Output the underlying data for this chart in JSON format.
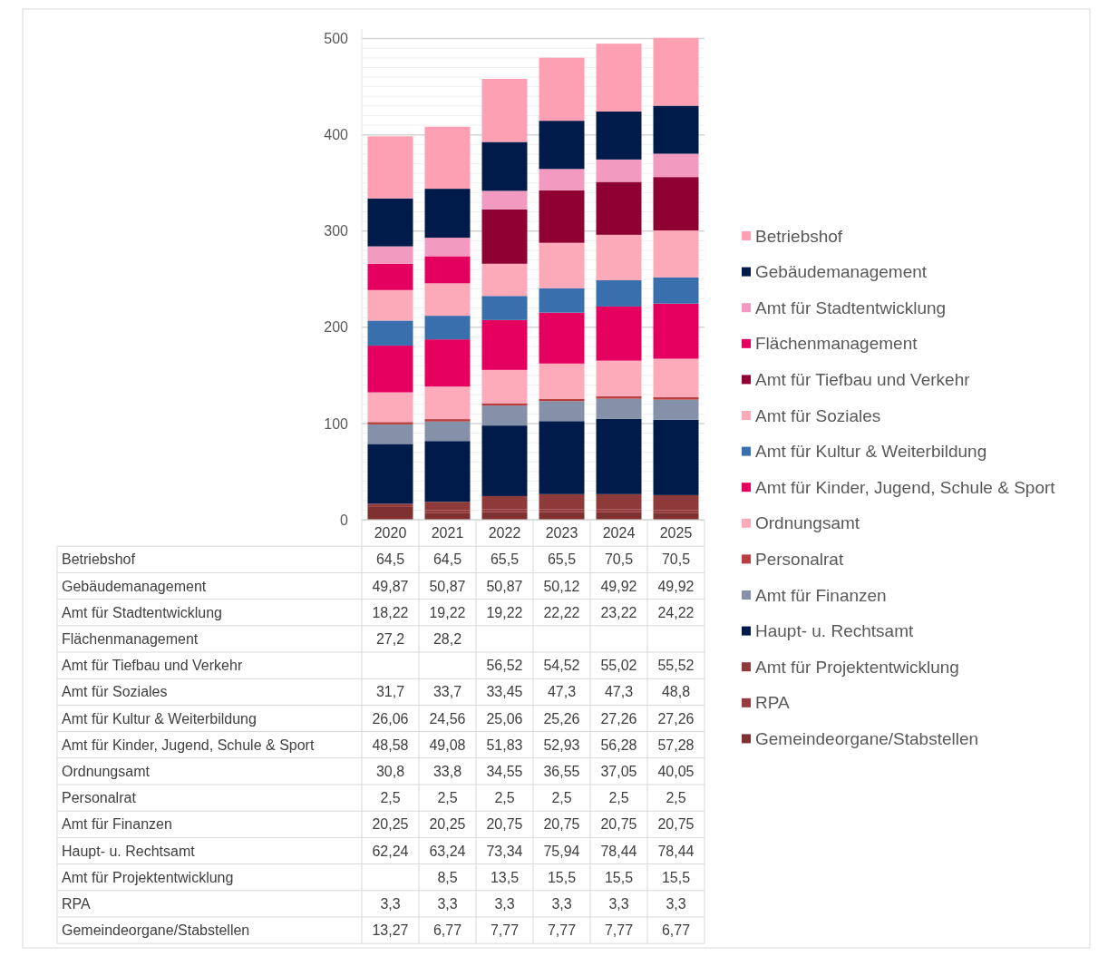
{
  "chart_data": {
    "type": "bar",
    "stacked": true,
    "grid": "y",
    "legend": "right",
    "categories": [
      "2020",
      "2021",
      "2022",
      "2023",
      "2024",
      "2025"
    ],
    "ylim": [
      0,
      510
    ],
    "yticks": [
      0,
      {
        "value": 10,
        "label": null
      },
      {
        "value": 20,
        "label": null
      },
      {
        "value": 30,
        "label": null
      },
      {
        "value": 40,
        "label": null
      },
      {
        "value": 50,
        "label": null
      },
      {
        "value": 60,
        "label": null
      },
      {
        "value": 70,
        "label": null
      },
      {
        "value": 80,
        "label": null
      },
      {
        "value": 90,
        "label": null
      },
      100,
      {
        "value": 110,
        "label": null
      },
      {
        "value": 120,
        "label": null
      },
      {
        "value": 130,
        "label": null
      },
      {
        "value": 140,
        "label": null
      },
      {
        "value": 150,
        "label": null
      },
      {
        "value": 160,
        "label": null
      },
      {
        "value": 170,
        "label": null
      },
      {
        "value": 180,
        "label": null
      },
      {
        "value": 190,
        "label": null
      },
      200,
      {
        "value": 210,
        "label": null
      },
      {
        "value": 220,
        "label": null
      },
      {
        "value": 230,
        "label": null
      },
      {
        "value": 240,
        "label": null
      },
      {
        "value": 250,
        "label": null
      },
      {
        "value": 260,
        "label": null
      },
      {
        "value": 270,
        "label": null
      },
      {
        "value": 280,
        "label": null
      },
      {
        "value": 290,
        "label": null
      },
      300,
      {
        "value": 310,
        "label": null
      },
      {
        "value": 320,
        "label": null
      },
      {
        "value": 330,
        "label": null
      },
      {
        "value": 340,
        "label": null
      },
      {
        "value": 350,
        "label": null
      },
      {
        "value": 360,
        "label": null
      },
      {
        "value": 370,
        "label": null
      },
      {
        "value": 380,
        "label": null
      },
      {
        "value": 390,
        "label": null
      },
      400,
      {
        "value": 410,
        "label": null
      },
      {
        "value": 420,
        "label": null
      },
      {
        "value": 430,
        "label": null
      },
      {
        "value": 440,
        "label": null
      },
      {
        "value": 450,
        "label": null
      },
      {
        "value": 460,
        "label": null
      },
      {
        "value": 470,
        "label": null
      },
      {
        "value": 480,
        "label": null
      },
      {
        "value": 490,
        "label": null
      },
      500
    ],
    "series": [
      {
        "name": "Gemeindeorgane/Stabstellen",
        "color": "#7f3030",
        "values": [
          13.27,
          6.77,
          7.77,
          7.77,
          7.77,
          6.77
        ],
        "value_labels": [
          "13,27",
          "6,77",
          "7,77",
          "7,77",
          "7,77",
          "6,77"
        ]
      },
      {
        "name": "RPA",
        "color": "#963c3c",
        "values": [
          3.3,
          3.3,
          3.3,
          3.3,
          3.3,
          3.3
        ],
        "value_labels": [
          "3,3",
          "3,3",
          "3,3",
          "3,3",
          "3,3",
          "3,3"
        ]
      },
      {
        "name": "Amt für Projektentwicklung",
        "color": "#8f3a3a",
        "values": [
          null,
          8.5,
          13.5,
          15.5,
          15.5,
          15.5
        ],
        "value_labels": [
          null,
          "8,5",
          "13,5",
          "15,5",
          "15,5",
          "15,5"
        ]
      },
      {
        "name": "Haupt- u. Rechtsamt",
        "color": "#001b4a",
        "values": [
          62.24,
          63.24,
          73.34,
          75.94,
          78.44,
          78.44
        ],
        "value_labels": [
          "62,24",
          "63,24",
          "73,34",
          "75,94",
          "78,44",
          "78,44"
        ]
      },
      {
        "name": "Amt für Finanzen",
        "color": "#8591a8",
        "values": [
          20.25,
          20.25,
          20.75,
          20.75,
          20.75,
          20.75
        ],
        "value_labels": [
          "20,25",
          "20,25",
          "20,75",
          "20,75",
          "20,75",
          "20,75"
        ]
      },
      {
        "name": "Personalrat",
        "color": "#b84040",
        "values": [
          2.5,
          2.5,
          2.5,
          2.5,
          2.5,
          2.5
        ],
        "value_labels": [
          "2,5",
          "2,5",
          "2,5",
          "2,5",
          "2,5",
          "2,5"
        ]
      },
      {
        "name": "Ordnungsamt",
        "color": "#fdaabb",
        "values": [
          30.8,
          33.8,
          34.55,
          36.55,
          37.05,
          40.05
        ],
        "value_labels": [
          "30,8",
          "33,8",
          "34,55",
          "36,55",
          "37,05",
          "40,05"
        ]
      },
      {
        "name": "Amt für Kinder, Jugend, Schule & Sport",
        "color": "#e5005f",
        "values": [
          48.58,
          49.08,
          51.83,
          52.93,
          56.28,
          57.28
        ],
        "value_labels": [
          "48,58",
          "49,08",
          "51,83",
          "52,93",
          "56,28",
          "57,28"
        ]
      },
      {
        "name": "Amt für Kultur & Weiterbildung",
        "color": "#3a6fad",
        "values": [
          26.06,
          24.56,
          25.06,
          25.26,
          27.26,
          27.26
        ],
        "value_labels": [
          "26,06",
          "24,56",
          "25,06",
          "25,26",
          "27,26",
          "27,26"
        ]
      },
      {
        "name": "Amt für Soziales",
        "color": "#fca9ba",
        "values": [
          31.7,
          33.7,
          33.45,
          47.3,
          47.3,
          48.8
        ],
        "value_labels": [
          "31,7",
          "33,7",
          "33,45",
          "47,3",
          "47,3",
          "48,8"
        ]
      },
      {
        "name": "Amt für Tiefbau und Verkehr",
        "color": "#8f0033",
        "values": [
          null,
          null,
          56.52,
          54.52,
          55.02,
          55.52
        ],
        "value_labels": [
          null,
          null,
          "56,52",
          "54,52",
          "55,02",
          "55,52"
        ]
      },
      {
        "name": "Flächenmanagement",
        "color": "#e4005e",
        "values": [
          27.2,
          28.2,
          null,
          null,
          null,
          null
        ],
        "value_labels": [
          "27,2",
          "28,2",
          null,
          null,
          null,
          null
        ]
      },
      {
        "name": "Amt für Stadtentwicklung",
        "color": "#f29ac0",
        "values": [
          18.22,
          19.22,
          19.22,
          22.22,
          23.22,
          24.22
        ],
        "value_labels": [
          "18,22",
          "19,22",
          "19,22",
          "22,22",
          "23,22",
          "24,22"
        ]
      },
      {
        "name": "Gebäudemanagement",
        "color": "#001a49",
        "values": [
          49.87,
          50.87,
          50.87,
          50.12,
          49.92,
          49.92
        ],
        "value_labels": [
          "49,87",
          "50,87",
          "50,87",
          "50,12",
          "49,92",
          "49,92"
        ]
      },
      {
        "name": "Betriebshof",
        "color": "#fda0b4",
        "values": [
          64.5,
          64.5,
          65.5,
          65.5,
          70.5,
          70.5
        ],
        "value_labels": [
          "64,5",
          "64,5",
          "65,5",
          "65,5",
          "70,5",
          "70,5"
        ]
      }
    ]
  }
}
